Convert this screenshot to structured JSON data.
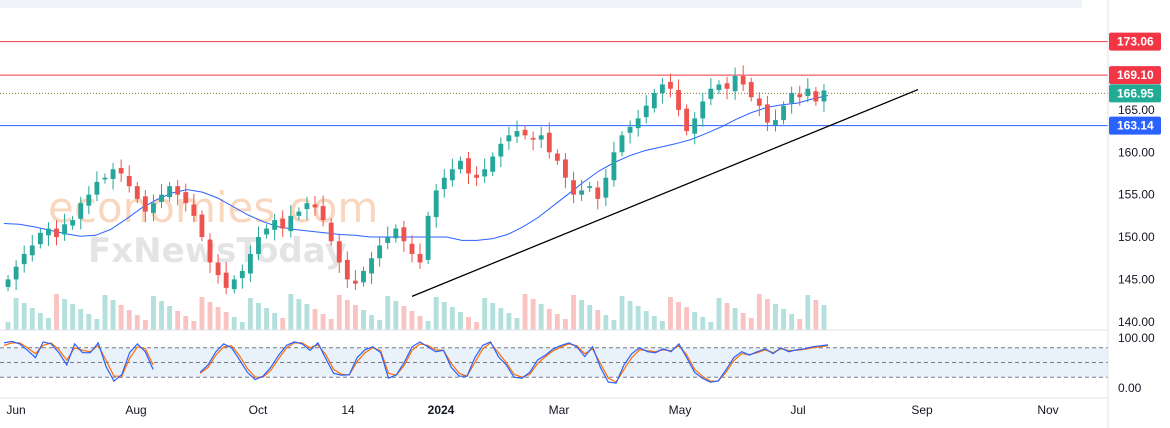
{
  "chart_data": {
    "type": "candlestick",
    "x_ticks": [
      "Jun",
      "Aug",
      "Oct",
      "14",
      "2024",
      "Mar",
      "May",
      "Jul",
      "Sep",
      "Nov"
    ],
    "x_tick_bold": "2024",
    "price_axis": {
      "ticks": [
        "165.00",
        "160.00",
        "155.00",
        "150.00",
        "145.00",
        "140.00"
      ],
      "range": [
        139.5,
        177.5
      ]
    },
    "oscillator_axis": {
      "ticks": [
        "100.00",
        "0.00"
      ],
      "range": [
        0,
        100
      ],
      "upper_band": 80,
      "lower_band": 20
    },
    "levels": [
      {
        "label": "173.06",
        "value": 173.06,
        "color": "#f23645",
        "style": "solid"
      },
      {
        "label": "169.10",
        "value": 169.1,
        "color": "#f23645",
        "style": "solid"
      },
      {
        "label": "166.95",
        "value": 166.95,
        "color": "#22ab94",
        "style": "dotted"
      },
      {
        "label": "163.14",
        "value": 163.14,
        "color": "#2962ff",
        "style": "solid"
      }
    ],
    "trendline": {
      "start": {
        "x": "Nov 2023",
        "y": 143.0
      },
      "end": {
        "x": "Aug 2024",
        "y": 167.4
      }
    },
    "closes": [
      145,
      146.5,
      148,
      149,
      150.5,
      151,
      150,
      151.5,
      152,
      154,
      155,
      156.5,
      157,
      158,
      157.5,
      156,
      154.5,
      153,
      154,
      155,
      156,
      155,
      154,
      152.5,
      150,
      147,
      145.5,
      144,
      145,
      146,
      148,
      150,
      151,
      152,
      151,
      152.5,
      153,
      154,
      153.5,
      152,
      149.5,
      147,
      145,
      144.5,
      146,
      147.5,
      149,
      150,
      151,
      149.5,
      148,
      147,
      152.5,
      155.5,
      157,
      158,
      159,
      157.5,
      157,
      158,
      159.5,
      161,
      162,
      162.5,
      162,
      161.5,
      162,
      160,
      159,
      157,
      155,
      155.5,
      156,
      154.5,
      157,
      160,
      162,
      163,
      164,
      165.5,
      167,
      168,
      167.5,
      165,
      162.5,
      164,
      166,
      167.5,
      168,
      167.5,
      169,
      168,
      166.5,
      165.5,
      163.5,
      163.8,
      165.5,
      167,
      166.5,
      167.5,
      166,
      167.3
    ],
    "sma": [
      151.6,
      151.5,
      151.2,
      150.8,
      150.4,
      150.1,
      150.2,
      150.9,
      152.1,
      153.4,
      154.4,
      155.2,
      155.6,
      155.3,
      154.6,
      153.6,
      152.6,
      151.8,
      151.2,
      150.9,
      150.7,
      150.5,
      150.3,
      150.2,
      150.0,
      150.0,
      150.0,
      150.0,
      150.0,
      150.0,
      149.6,
      149.6,
      149.8,
      150.3,
      151.2,
      152.3,
      153.7,
      155.1,
      156.5,
      157.8,
      158.8,
      159.6,
      160.2,
      160.6,
      161.0,
      161.5,
      162.2,
      163.0,
      163.9,
      164.7,
      165.3,
      165.6,
      165.8,
      166.3,
      166.7
    ],
    "stoch_k": [
      90,
      93,
      88,
      75,
      60,
      92,
      88,
      70,
      45,
      88,
      70,
      70,
      90,
      42,
      12,
      25,
      70,
      88,
      72,
      36,
      20,
      58,
      92,
      62,
      18,
      30,
      45,
      72,
      88,
      80,
      56,
      30,
      15,
      22,
      40,
      65,
      85,
      92,
      88,
      75,
      90,
      58,
      28,
      24,
      25,
      60,
      76,
      82,
      70,
      18,
      25,
      50,
      82,
      92,
      82,
      72,
      75,
      40,
      22,
      22,
      60,
      85,
      92,
      62,
      45,
      20,
      18,
      30,
      55,
      65,
      78,
      85,
      90,
      82,
      62,
      82,
      40,
      10,
      8,
      45,
      68,
      80,
      72,
      70,
      78,
      72,
      88,
      60,
      30,
      18,
      10,
      12,
      35,
      60,
      72,
      65,
      72,
      78,
      68,
      80,
      72,
      76,
      78,
      82,
      84,
      86
    ],
    "stoch_d": [
      85,
      90,
      90,
      80,
      68,
      85,
      90,
      76,
      55,
      80,
      75,
      72,
      85,
      55,
      22,
      22,
      58,
      82,
      78,
      45,
      25,
      50,
      85,
      70,
      28,
      28,
      40,
      65,
      82,
      84,
      64,
      38,
      20,
      20,
      34,
      58,
      80,
      90,
      90,
      80,
      86,
      66,
      36,
      26,
      25,
      52,
      70,
      80,
      74,
      28,
      24,
      44,
      75,
      88,
      85,
      76,
      75,
      48,
      28,
      22,
      50,
      78,
      90,
      70,
      50,
      26,
      20,
      26,
      48,
      62,
      74,
      82,
      88,
      84,
      68,
      78,
      48,
      18,
      10,
      36,
      60,
      76,
      74,
      72,
      76,
      74,
      84,
      66,
      36,
      22,
      12,
      12,
      30,
      54,
      68,
      66,
      70,
      76,
      70,
      78,
      74,
      75,
      77,
      80,
      82,
      84
    ]
  },
  "watermark": {
    "brand": "economies.com",
    "brand_line2": "FxNewsToday"
  },
  "colors": {
    "up": "#26a69a",
    "down": "#ef5350",
    "sma": "#2962ff",
    "stoch_k": "#2962ff",
    "stoch_d": "#ff6d00",
    "trendline": "#000000"
  }
}
